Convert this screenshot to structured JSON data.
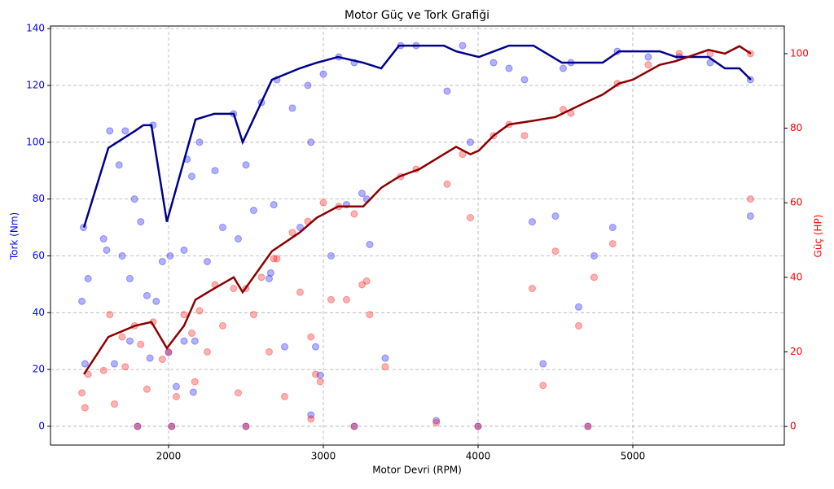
{
  "chart_data": {
    "type": "scatter",
    "title": "Motor Güç ve Tork Grafiği",
    "xlabel": "Motor Devri (RPM)",
    "ylabel": "Tork (Nm)",
    "y2label": "Güç (HP)",
    "ylabel_color": "#0000ff",
    "y2label_color": "#ff0000",
    "xlim": [
      1237,
      5979
    ],
    "ylim": [
      -6.6,
      140.9
    ],
    "y2lim": [
      -5,
      107.4
    ],
    "xticks": [
      2000,
      3000,
      4000,
      5000
    ],
    "yticks": [
      0,
      20,
      40,
      60,
      80,
      100,
      120,
      140
    ],
    "y2ticks": [
      0,
      20,
      40,
      60,
      80,
      100
    ],
    "grid": true,
    "series": [
      {
        "mode": "scatter",
        "color": "#0000ff",
        "axis": "y",
        "x": [
          1440,
          1450,
          1460,
          1480,
          1580,
          1600,
          1620,
          1650,
          1680,
          1700,
          1720,
          1750,
          1780,
          1820,
          1860,
          1880,
          1900,
          1920,
          1960,
          2000,
          2010,
          2050,
          2100,
          2120,
          2150,
          2170,
          2200,
          2250,
          2300,
          2350,
          2420,
          2450,
          2500,
          2550,
          2600,
          2650,
          2660,
          2680,
          2700,
          2750,
          2800,
          2850,
          2900,
          2920,
          2950,
          2980,
          3000,
          3050,
          3100,
          3150,
          3200,
          3250,
          3280,
          3300,
          3400,
          3500,
          3600,
          3730,
          3800,
          3900,
          3950,
          4000,
          4100,
          4200,
          4300,
          4350,
          4420,
          4500,
          4550,
          4600,
          4650,
          4710,
          4750,
          4870,
          4900,
          5100,
          5300,
          5500,
          5760,
          5760,
          1800,
          2020,
          2500,
          2920,
          3200,
          2160,
          1750,
          2100
        ],
        "values": [
          44,
          70,
          22,
          52,
          66,
          62,
          104,
          22,
          92,
          60,
          104,
          52,
          80,
          72,
          46,
          24,
          106,
          44,
          58,
          26,
          60,
          14,
          62,
          94,
          88,
          30,
          100,
          58,
          90,
          70,
          110,
          66,
          92,
          76,
          114,
          52,
          54,
          78,
          122,
          28,
          112,
          70,
          120,
          100,
          28,
          18,
          124,
          60,
          130,
          78,
          128,
          82,
          80,
          64,
          24,
          134,
          134,
          2,
          118,
          134,
          100,
          0,
          128,
          126,
          122,
          72,
          22,
          74,
          126,
          128,
          42,
          0,
          60,
          70,
          132,
          130,
          130,
          128,
          74,
          122,
          0,
          0,
          0,
          4,
          0,
          12,
          30,
          30
        ]
      },
      {
        "mode": "scatter",
        "color": "#ff0000",
        "axis": "y2",
        "x": [
          1440,
          1460,
          1480,
          1580,
          1620,
          1650,
          1700,
          1720,
          1780,
          1820,
          1860,
          1900,
          1960,
          2000,
          2050,
          2100,
          2150,
          2170,
          2200,
          2250,
          2300,
          2350,
          2420,
          2450,
          2500,
          2550,
          2600,
          2650,
          2680,
          2700,
          2750,
          2800,
          2850,
          2900,
          2920,
          2950,
          2980,
          3000,
          3050,
          3100,
          3150,
          3200,
          3250,
          3280,
          3300,
          3400,
          3500,
          3600,
          3730,
          3800,
          3900,
          3950,
          4000,
          4100,
          4200,
          4300,
          4350,
          4420,
          4500,
          4550,
          4600,
          4650,
          4710,
          4750,
          4870,
          4900,
          5100,
          5300,
          5500,
          5760,
          5760,
          1800,
          2020,
          2500,
          2920,
          3200
        ],
        "values": [
          9,
          5,
          14,
          15,
          30,
          6,
          24,
          16,
          27,
          22,
          10,
          28,
          18,
          20,
          8,
          30,
          25,
          12,
          31,
          20,
          38,
          27,
          37,
          9,
          37,
          30,
          40,
          20,
          45,
          45,
          8,
          52,
          36,
          55,
          24,
          14,
          12,
          60,
          34,
          59,
          34,
          57,
          38,
          39,
          30,
          16,
          67,
          69,
          1,
          65,
          73,
          56,
          0,
          78,
          81,
          78,
          37,
          11,
          47,
          85,
          84,
          27,
          0,
          40,
          49,
          92,
          97,
          100,
          100,
          61,
          100,
          0,
          0,
          0,
          2,
          0
        ]
      },
      {
        "mode": "line",
        "color": "#00008b",
        "axis": "y",
        "x": [
          1453,
          1611,
          1784,
          1837,
          1889,
          1989,
          2174,
          2295,
          2421,
          2479,
          2668,
          2847,
          2958,
          3095,
          3258,
          3374,
          3489,
          3779,
          3858,
          4005,
          4200,
          4358,
          4542,
          4805,
          4911,
          5174,
          5279,
          5489,
          5595,
          5689,
          5763
        ],
        "values": [
          70,
          98,
          104,
          106,
          106,
          72,
          108,
          110,
          110,
          100,
          122,
          126,
          128,
          130,
          128,
          126,
          134,
          134,
          132,
          130,
          134,
          134,
          128,
          128,
          132,
          132,
          130,
          130,
          126,
          126,
          122
        ]
      },
      {
        "mode": "line",
        "color": "#8b0000",
        "axis": "y2",
        "x": [
          1453,
          1611,
          1784,
          1889,
          1989,
          2100,
          2174,
          2295,
          2421,
          2479,
          2668,
          2847,
          2958,
          3095,
          3258,
          3374,
          3489,
          3620,
          3779,
          3858,
          3950,
          4005,
          4100,
          4200,
          4358,
          4500,
          4700,
          4805,
          4911,
          5000,
          5174,
          5279,
          5489,
          5595,
          5689,
          5763
        ],
        "values": [
          14,
          24,
          27,
          28,
          21,
          27,
          34,
          37,
          40,
          36,
          47,
          52,
          56,
          59,
          59,
          64,
          67,
          69,
          73,
          75,
          73,
          74,
          78,
          81,
          82,
          83,
          87,
          89,
          92,
          93,
          97,
          98,
          101,
          100,
          102,
          100
        ]
      }
    ]
  }
}
